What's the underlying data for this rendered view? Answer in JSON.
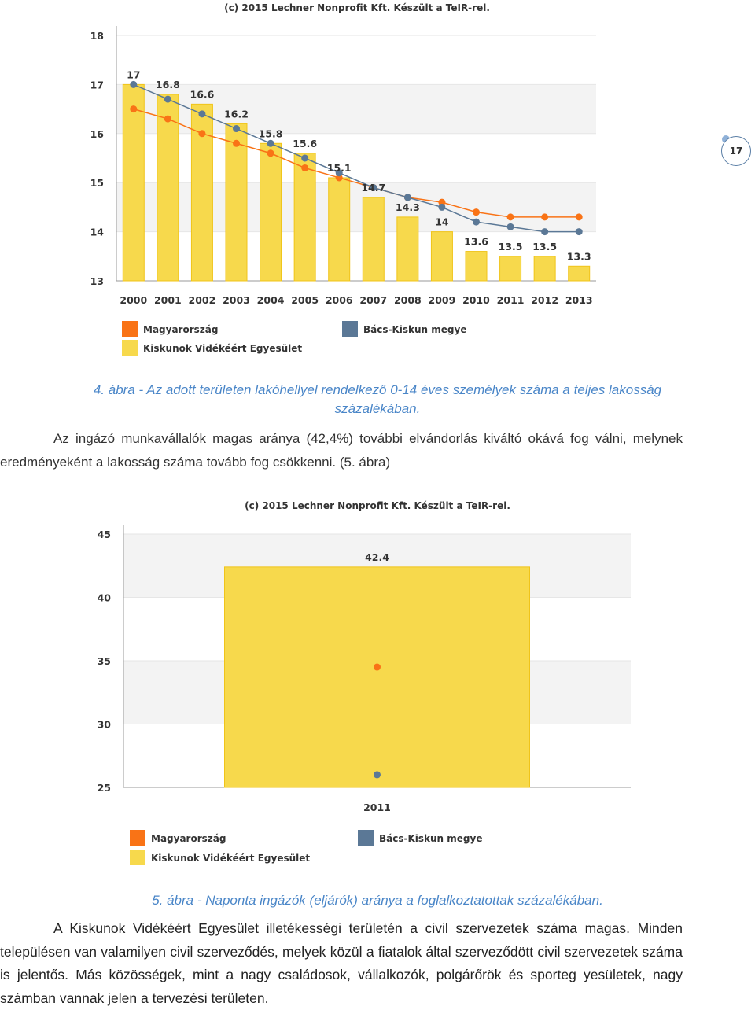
{
  "page_number": "17",
  "chart1": {
    "credit": "(c) 2015 Lechner Nonprofit Kft. Készült a TeIR-rel.",
    "caption_line1": "4. ábra - Az adott területen lakóhellyel rendelkező 0-14 éves személyek száma a teljes lakosság",
    "caption_line2": "százalékában."
  },
  "chart2": {
    "credit": "(c) 2015 Lechner Nonprofit Kft. Készült a TeIR-rel.",
    "caption": "5. ábra - Naponta ingázók (eljárók) aránya a foglalkoztatottak százalékában."
  },
  "paragraph1": "Az ingázó munkavállalók magas aránya (42,4%) további elvándorlás kiváltó okává fog válni, melynek eredményeként a lakosság száma tovább fog csökkenni. (5. ábra)",
  "paragraph2": "A Kiskunok Vidékéért Egyesület illetékességi területén a civil szervezetek száma magas. Minden településen van valamilyen civil szerveződés, melyek közül a fiatalok által szerveződött civil szervezetek száma is jelentős. Más közösségek, mint a nagy családosok, vállalkozók, polgárőrök és sporteg yesületek, nagy számban vannak jelen a tervezési területen.",
  "colors": {
    "magyarorszag": "#f97316",
    "bacs": "#5b7896",
    "kiskunok": "#f7d94c",
    "kiskunok_border": "#f0c419",
    "caption": "#4a86c8"
  },
  "chart_data": [
    {
      "type": "bar",
      "categories": [
        "2000",
        "2001",
        "2002",
        "2003",
        "2004",
        "2005",
        "2006",
        "2007",
        "2008",
        "2009",
        "2010",
        "2011",
        "2012",
        "2013"
      ],
      "ylim": [
        13,
        18
      ],
      "yticks": [
        "13",
        "14",
        "15",
        "16",
        "17",
        "18"
      ],
      "series": [
        {
          "name": "Kiskunok Vidékéért Egyesület",
          "kind": "bar",
          "values": [
            17,
            16.8,
            16.6,
            16.2,
            15.8,
            15.6,
            15.1,
            14.7,
            14.3,
            14,
            13.6,
            13.5,
            13.5,
            13.3
          ],
          "labels": [
            "17",
            "16.8",
            "16.6",
            "16.2",
            "15.8",
            "15.6",
            "15.1",
            "14.7",
            "14.3",
            "14",
            "13.6",
            "13.5",
            "13.5",
            "13.3"
          ]
        },
        {
          "name": "Magyarország",
          "kind": "line",
          "values": [
            16.5,
            16.3,
            16.0,
            15.8,
            15.6,
            15.3,
            15.1,
            14.9,
            14.7,
            14.6,
            14.4,
            14.3,
            14.3,
            14.3
          ]
        },
        {
          "name": "Bács-Kiskun megye",
          "kind": "line",
          "values": [
            17.0,
            16.7,
            16.4,
            16.1,
            15.8,
            15.5,
            15.2,
            14.9,
            14.7,
            14.5,
            14.2,
            14.1,
            14.0,
            14.0
          ]
        }
      ],
      "legend": [
        "Magyarország",
        "Bács-Kiskun megye",
        "Kiskunok Vidékéért Egyesület"
      ],
      "legend_position": "bottom",
      "grid": true
    },
    {
      "type": "bar",
      "categories": [
        "2011"
      ],
      "ylim": [
        25,
        45
      ],
      "yticks": [
        "25",
        "30",
        "35",
        "40",
        "45"
      ],
      "series": [
        {
          "name": "Kiskunok Vidékéért Egyesület",
          "kind": "bar",
          "values": [
            42.4
          ],
          "labels": [
            "42.4"
          ]
        },
        {
          "name": "Magyarország",
          "kind": "point",
          "values": [
            34.5
          ]
        },
        {
          "name": "Bács-Kiskun megye",
          "kind": "point",
          "values": [
            26.0
          ]
        }
      ],
      "legend": [
        "Magyarország",
        "Bács-Kiskun megye",
        "Kiskunok Vidékéért Egyesület"
      ],
      "legend_position": "bottom",
      "grid": true
    }
  ]
}
